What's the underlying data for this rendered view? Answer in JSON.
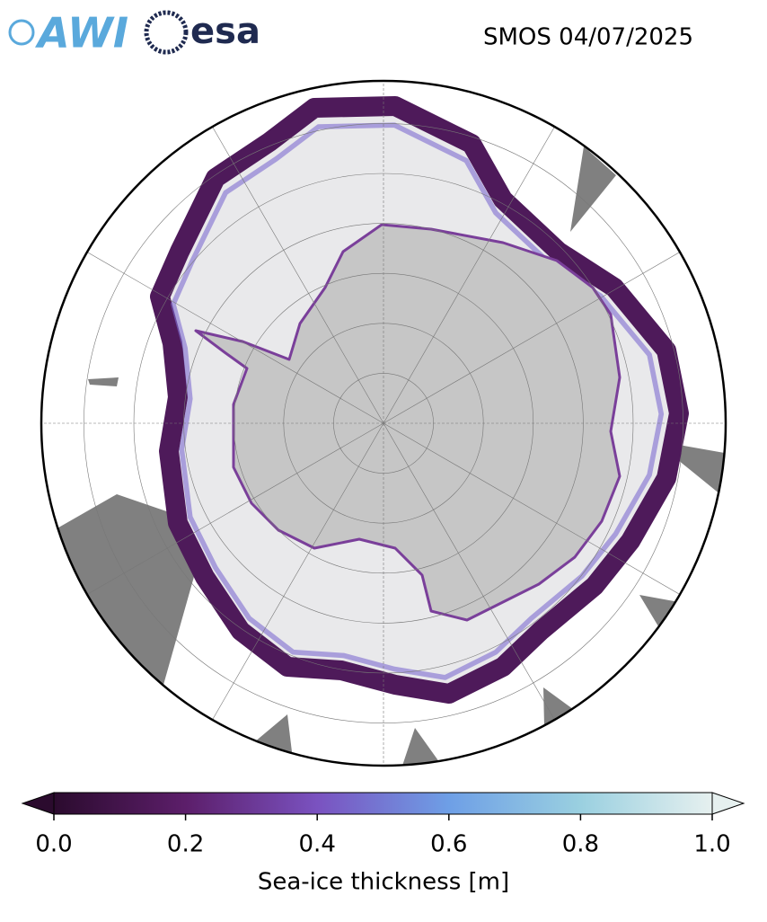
{
  "header": {
    "logos": [
      "AWI",
      "esa"
    ],
    "title": "SMOS 04/07/2025"
  },
  "colorbar": {
    "label": "Sea-ice thickness [m]",
    "lim": [
      0,
      1
    ],
    "ticks": [
      {
        "value": 0,
        "label": "0.0"
      },
      {
        "value": 0.2,
        "label": "0.2"
      },
      {
        "value": 0.4,
        "label": "0.4"
      },
      {
        "value": 0.6,
        "label": "0.6"
      },
      {
        "value": 0.8,
        "label": "0.8"
      },
      {
        "value": 1,
        "label": "1.0"
      }
    ],
    "colors": [
      "#2b0b2e",
      "#5c1e6a",
      "#7a52c0",
      "#6e9fe6",
      "#9ad0e0",
      "#e6f0ef"
    ]
  }
}
